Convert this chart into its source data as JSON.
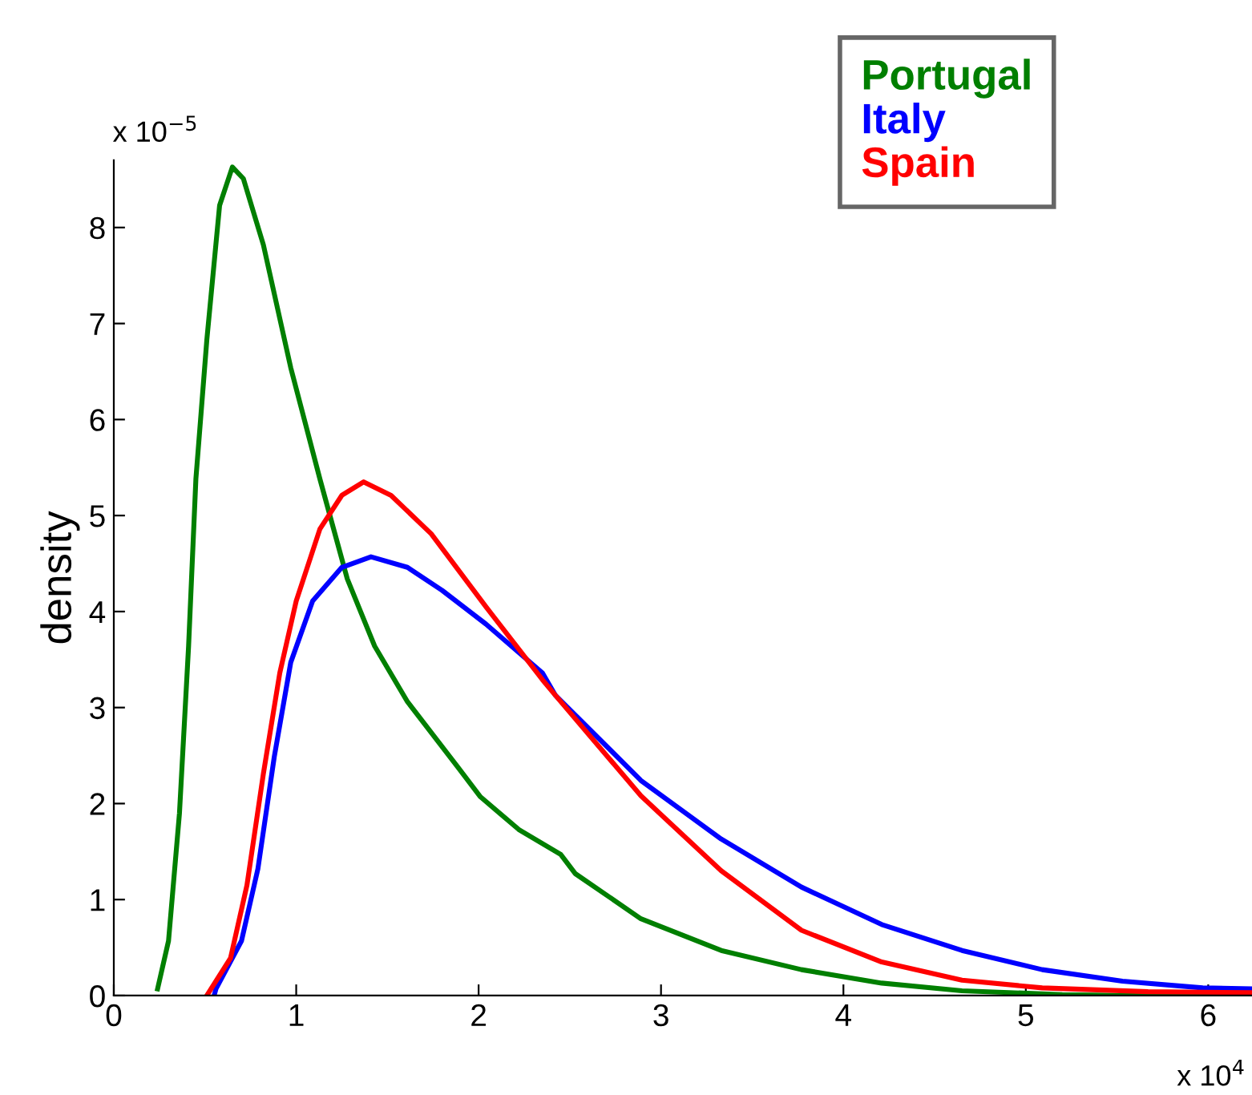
{
  "chart_data": {
    "type": "line",
    "ylabel": "density",
    "xlim": [
      0,
      6.24
    ],
    "ylim": [
      0,
      8.7
    ],
    "xticks": [
      0,
      1,
      2,
      3,
      4,
      5,
      6
    ],
    "yticks": [
      0,
      1,
      2,
      3,
      4,
      5,
      6,
      7,
      8
    ],
    "grid": false,
    "legend": "top right",
    "line_style": "solid",
    "marker": "none",
    "annotations": [
      "x 10$^{−5}$",
      "x 10$^{4}$"
    ],
    "series": [
      {
        "name": "Portugal",
        "color": "#007f00",
        "x": [
          0.24,
          0.3,
          0.36,
          0.41,
          0.45,
          0.51,
          0.58,
          0.65,
          0.71,
          0.82,
          0.97,
          1.13,
          1.28,
          1.43,
          1.61,
          1.89,
          2.01,
          2.22,
          2.45,
          2.53,
          2.89,
          3.33,
          3.77,
          4.21,
          4.65,
          5.2,
          5.6,
          6.24
        ],
        "values": [
          0.07,
          0.57,
          1.9,
          3.64,
          5.38,
          6.83,
          8.23,
          8.63,
          8.51,
          7.82,
          6.54,
          5.38,
          4.34,
          3.64,
          3.06,
          2.37,
          2.07,
          1.73,
          1.47,
          1.27,
          0.8,
          0.47,
          0.27,
          0.13,
          0.05,
          0.01,
          0.0,
          0.0
        ]
      },
      {
        "name": "Italy",
        "color": "#0000ff",
        "x": [
          0.55,
          0.56,
          0.7,
          0.79,
          0.88,
          0.97,
          1.09,
          1.25,
          1.41,
          1.61,
          1.8,
          2.04,
          2.35,
          2.42,
          2.89,
          3.33,
          3.77,
          4.21,
          4.65,
          5.09,
          5.53,
          5.97,
          6.24
        ],
        "values": [
          0.0,
          0.07,
          0.57,
          1.32,
          2.49,
          3.47,
          4.11,
          4.46,
          4.57,
          4.46,
          4.22,
          3.87,
          3.36,
          3.13,
          2.24,
          1.63,
          1.13,
          0.74,
          0.47,
          0.27,
          0.15,
          0.08,
          0.07
        ]
      },
      {
        "name": "Spain",
        "color": "#ff0000",
        "x": [
          0.51,
          0.64,
          0.73,
          0.82,
          0.91,
          1.0,
          1.13,
          1.25,
          1.37,
          1.52,
          1.74,
          2.04,
          2.35,
          2.42,
          2.89,
          3.33,
          3.77,
          4.21,
          4.65,
          5.09,
          5.67,
          6.24
        ],
        "values": [
          0.0,
          0.39,
          1.15,
          2.31,
          3.36,
          4.11,
          4.86,
          5.21,
          5.35,
          5.21,
          4.81,
          4.05,
          3.29,
          3.13,
          2.08,
          1.3,
          0.68,
          0.35,
          0.16,
          0.08,
          0.04,
          0.03
        ]
      }
    ]
  }
}
